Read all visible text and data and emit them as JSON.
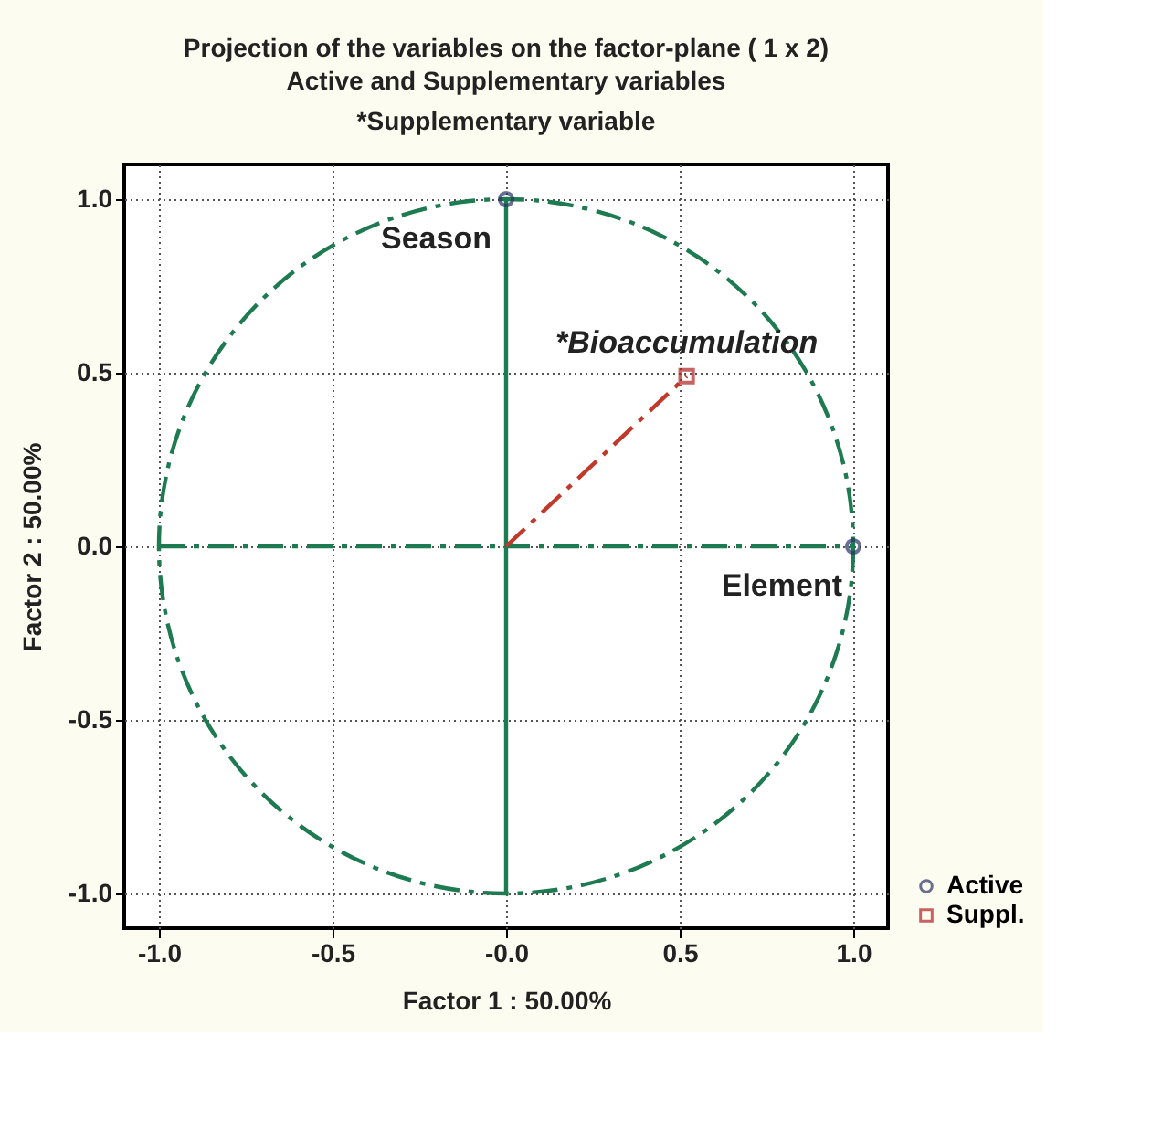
{
  "chart_data": {
    "type": "scatter",
    "title": "Projection of the variables on the factor-plane (  1 x    2)",
    "subtitle": "Active and Supplementary variables\n*Supplementary variable",
    "xlabel": "Factor 1 : 50.00%",
    "ylabel": "Factor 2 : 50.00%",
    "xlim": [
      -1.1,
      1.1
    ],
    "ylim": [
      -1.1,
      1.1
    ],
    "xticks": [
      {
        "value": -1,
        "label": "-1.0"
      },
      {
        "value": -0.5,
        "label": "-0.5"
      },
      {
        "value": 0,
        "label": "-0.0"
      },
      {
        "value": 0.5,
        "label": "0.5"
      },
      {
        "value": 1,
        "label": "1.0"
      }
    ],
    "yticks": [
      {
        "value": -1,
        "label": "-1.0"
      },
      {
        "value": -0.5,
        "label": "-0.5"
      },
      {
        "value": 0,
        "label": "0.0"
      },
      {
        "value": 0.5,
        "label": "0.5"
      },
      {
        "value": 1,
        "label": "1.0"
      }
    ],
    "grid": true,
    "legend": "bottom right",
    "series": [
      {
        "type": "line",
        "color": "#1e7a50",
        "line_style": "dashed",
        "x": [
          -1,
          1
        ],
        "values": [
          0,
          0
        ]
      },
      {
        "type": "line",
        "color": "#1e7a50",
        "line_style": "solid",
        "x": [
          0,
          0
        ],
        "values": [
          -1,
          1
        ]
      },
      {
        "type": "line",
        "color": "#c0392b",
        "line_style": "dashed",
        "x": [
          0,
          0.52
        ],
        "values": [
          0,
          0.49
        ]
      },
      {
        "name": "Active",
        "color": "#2a3566",
        "marker": "circle",
        "x": [
          0,
          1
        ],
        "values": [
          1,
          0
        ]
      },
      {
        "name": "Suppl.",
        "color": "#b22222",
        "marker": "square",
        "x": [
          0.52
        ],
        "values": [
          0.49
        ]
      }
    ],
    "annotations": [
      {
        "text": "Season",
        "x": 0,
        "y": 1
      },
      {
        "text": "Element",
        "x": 1,
        "y": 0
      },
      {
        "text": "*Bioaccumulation",
        "x": 0.52,
        "y": 0.49
      }
    ]
  }
}
